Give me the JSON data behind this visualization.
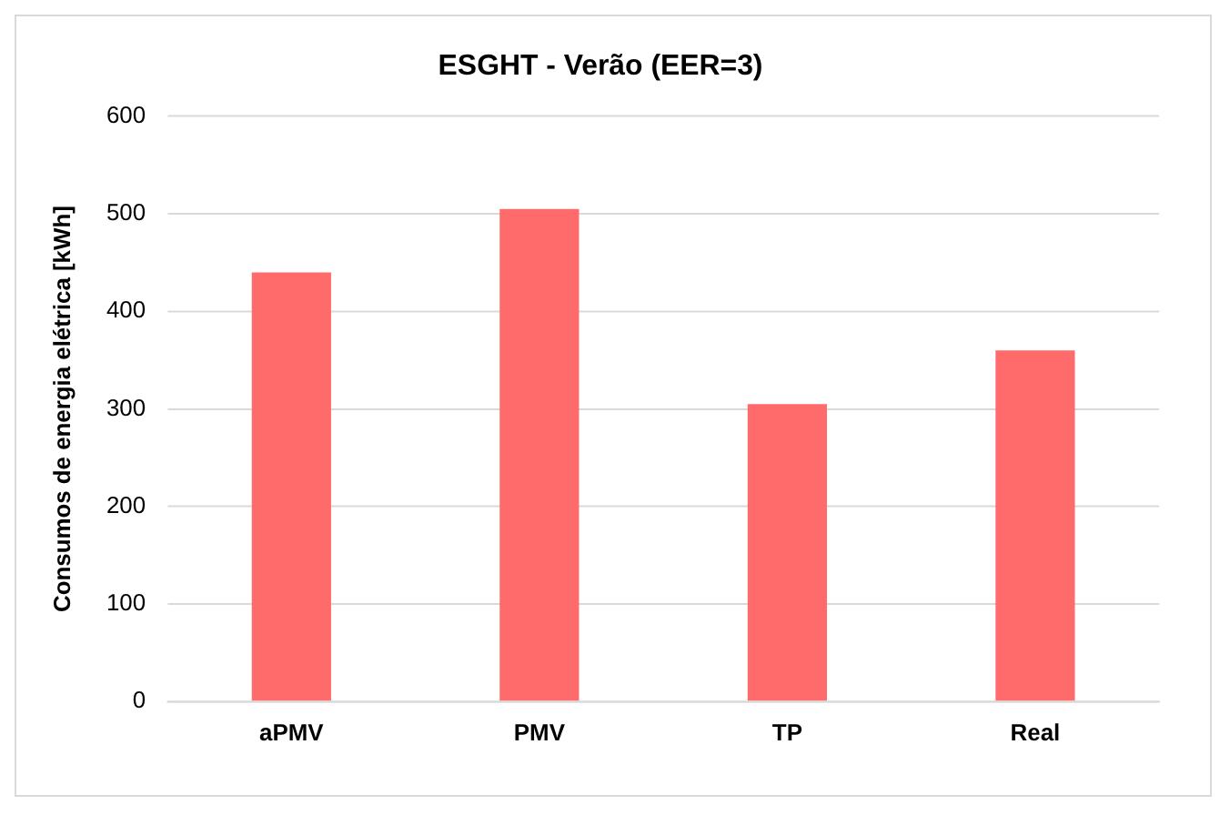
{
  "chart_data": {
    "type": "bar",
    "title": "ESGHT - Verão (EER=3)",
    "ylabel": "Consumos de energia elétrica [kWh]",
    "categories": [
      "aPMV",
      "PMV",
      "TP",
      "Real"
    ],
    "values": [
      440,
      505,
      305,
      360
    ],
    "color": "#ff6b6b",
    "ylim": [
      0,
      600
    ],
    "yticks": [
      0,
      100,
      200,
      300,
      400,
      500,
      600
    ],
    "grid": "y",
    "legend": false
  }
}
